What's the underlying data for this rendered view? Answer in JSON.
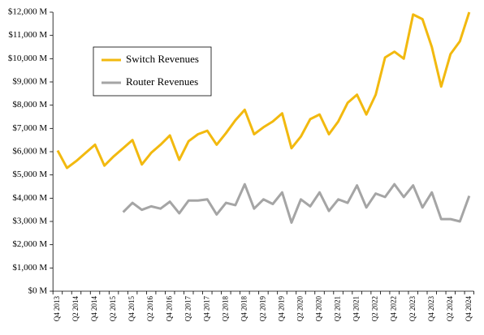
{
  "chart_data": {
    "type": "line",
    "categories": [
      "Q4 2013",
      null,
      "Q2 2014",
      null,
      "Q4 2014",
      null,
      "Q2 2015",
      null,
      "Q4 2015",
      null,
      "Q2 2016",
      null,
      "Q4 2016",
      null,
      "Q2 2017",
      null,
      "Q4 2017",
      null,
      "Q2 2018",
      null,
      "Q4 2018",
      null,
      "Q2 2019",
      null,
      "Q4 2019",
      null,
      "Q2 2020",
      null,
      "Q4 2020",
      null,
      "Q2 2021",
      null,
      "Q4 2021",
      null,
      "Q2 2022",
      null,
      "Q4 2022",
      null,
      "Q2 2023",
      null,
      "Q4 2023",
      null,
      "Q2 2024",
      null,
      "Q4 2024"
    ],
    "series": [
      {
        "name": "Switch Revenues",
        "color": "#f2b90f",
        "values": [
          6050,
          5300,
          5600,
          5950,
          6300,
          5400,
          5800,
          6150,
          6500,
          5450,
          5950,
          6300,
          6700,
          5650,
          6450,
          6750,
          6900,
          6300,
          6800,
          7350,
          7800,
          6750,
          7050,
          7300,
          7650,
          6150,
          6650,
          7400,
          7600,
          6750,
          7300,
          8100,
          8450,
          7600,
          8450,
          10050,
          10300,
          10000,
          11900,
          11700,
          10500,
          8800,
          10200,
          10750,
          12000
        ]
      },
      {
        "name": "Router Revenues",
        "color": "#a5a5a5",
        "values": [
          null,
          null,
          null,
          null,
          null,
          null,
          null,
          3400,
          3800,
          3500,
          3650,
          3550,
          3850,
          3350,
          3900,
          3900,
          3950,
          3300,
          3800,
          3700,
          4600,
          3550,
          3950,
          3750,
          4250,
          2950,
          3950,
          3650,
          4250,
          3450,
          3950,
          3800,
          4550,
          3600,
          4200,
          4050,
          4600,
          4050,
          4550,
          3600,
          4250,
          3100,
          3100,
          3000,
          4100
        ]
      }
    ],
    "ylim": [
      0,
      12000
    ],
    "yticks": [
      {
        "value": 0,
        "label": "$0 M"
      },
      {
        "value": 1000,
        "label": "$1,000 M"
      },
      {
        "value": 2000,
        "label": "$2,000 M"
      },
      {
        "value": 3000,
        "label": "$3,000 M"
      },
      {
        "value": 4000,
        "label": "$4,000 M"
      },
      {
        "value": 5000,
        "label": "$5,000 M"
      },
      {
        "value": 6000,
        "label": "$6,000 M"
      },
      {
        "value": 7000,
        "label": "$7,000 M"
      },
      {
        "value": 8000,
        "label": "$8,000 M"
      },
      {
        "value": 9000,
        "label": "$9,000 M"
      },
      {
        "value": 10000,
        "label": "$10,000 M"
      },
      {
        "value": 11000,
        "label": "$11,000 M"
      },
      {
        "value": 12000,
        "label": "$12,000 M"
      }
    ],
    "grid": false,
    "legend": "upper-left"
  }
}
